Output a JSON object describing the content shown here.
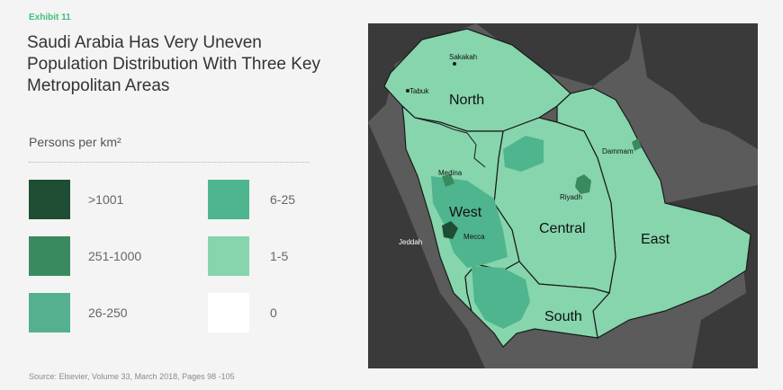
{
  "exhibit": "Exhibit 11",
  "title": "Saudi Arabia Has Very Uneven Population Distribution With Three Key Metropolitan Areas",
  "legend": {
    "title": "Persons per km²",
    "items": [
      {
        "label": ">1001",
        "color": "#1e4d34"
      },
      {
        "label": "251-1000",
        "color": "#3a8a5f"
      },
      {
        "label": "26-250",
        "color": "#54b08f"
      },
      {
        "label": "6-25",
        "color": "#4fb58f"
      },
      {
        "label": "1-5",
        "color": "#86d5ad"
      },
      {
        "label": "0",
        "color": "#ffffff"
      }
    ]
  },
  "source": "Source: Elsevier, Volume 33, March 2018, Pages 98  -105",
  "map": {
    "regions": [
      "North",
      "West",
      "Central",
      "East",
      "South"
    ],
    "cities": [
      "Sakakah",
      "Tabuk",
      "Medina",
      "Mecca",
      "Jeddah",
      "Riyadh",
      "Dammam"
    ],
    "colors": {
      "land_other": "#3a3a3a",
      "sea": "#5b5b5b",
      "region_fill": "#86d5ad",
      "border": "#1a1a1a"
    }
  }
}
